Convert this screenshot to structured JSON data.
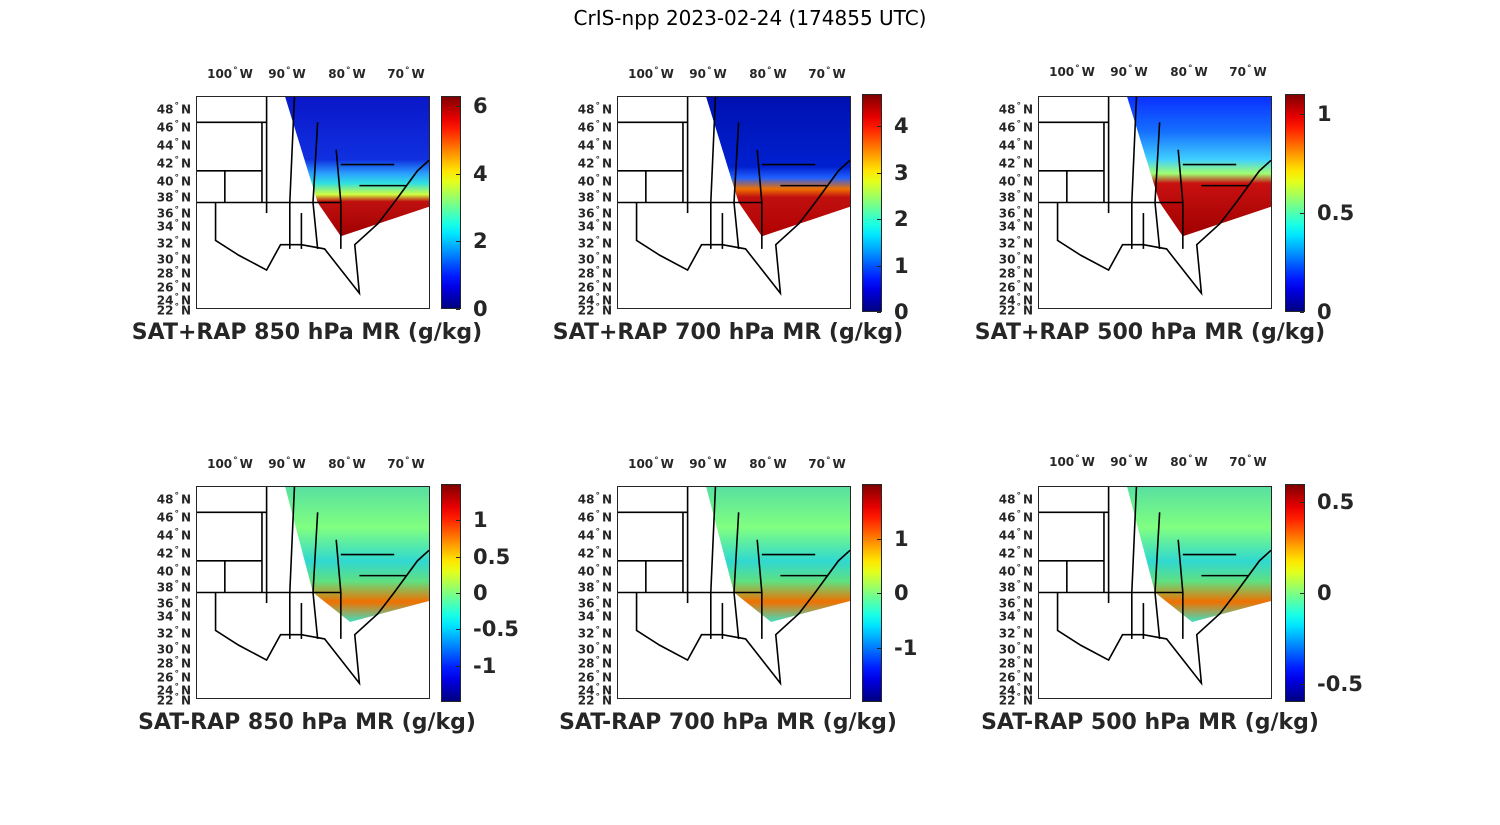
{
  "title": "CrIS-npp 2023-02-24 (174855 UTC)",
  "lon_ticks": [
    {
      "value": "100",
      "dir": "W"
    },
    {
      "value": "90",
      "dir": "W"
    },
    {
      "value": "80",
      "dir": "W"
    },
    {
      "value": "70",
      "dir": "W"
    }
  ],
  "lat_ticks": [
    {
      "value": "48",
      "dir": "N"
    },
    {
      "value": "46",
      "dir": "N"
    },
    {
      "value": "44",
      "dir": "N"
    },
    {
      "value": "42",
      "dir": "N"
    },
    {
      "value": "40",
      "dir": "N"
    },
    {
      "value": "38",
      "dir": "N"
    },
    {
      "value": "36",
      "dir": "N"
    },
    {
      "value": "34",
      "dir": "N"
    },
    {
      "value": "32",
      "dir": "N"
    },
    {
      "value": "30",
      "dir": "N"
    },
    {
      "value": "28",
      "dir": "N"
    },
    {
      "value": "26",
      "dir": "N"
    },
    {
      "value": "24",
      "dir": "N"
    },
    {
      "value": "22",
      "dir": "N"
    }
  ],
  "degree_symbol": "°",
  "colormap": "jet",
  "panels": [
    {
      "label": "SAT+RAP 850 hPa MR (g/kg)",
      "type": "total",
      "clim": [
        0,
        6.3
      ],
      "ticks": [
        "0",
        "2",
        "4",
        "6"
      ],
      "tick_values": [
        0,
        2,
        4,
        6
      ]
    },
    {
      "label": "SAT+RAP 700 hPa MR (g/kg)",
      "type": "total",
      "clim": [
        0,
        4.7
      ],
      "ticks": [
        "0",
        "1",
        "2",
        "3",
        "4"
      ],
      "tick_values": [
        0,
        1,
        2,
        3,
        4
      ]
    },
    {
      "label": "SAT+RAP 500 hPa MR (g/kg)",
      "type": "total",
      "clim": [
        0,
        1.1
      ],
      "ticks": [
        "0",
        "0.5",
        "1"
      ],
      "tick_values": [
        0,
        0.5,
        1
      ]
    },
    {
      "label": "SAT-RAP 850 hPa MR (g/kg)",
      "type": "diff",
      "clim": [
        -1.5,
        1.5
      ],
      "ticks": [
        "-1",
        "-0.5",
        "0",
        "0.5",
        "1"
      ],
      "tick_values": [
        -1,
        -0.5,
        0,
        0.5,
        1
      ]
    },
    {
      "label": "SAT-RAP 700 hPa MR (g/kg)",
      "type": "diff",
      "clim": [
        -2,
        2
      ],
      "ticks": [
        "-1",
        "0",
        "1"
      ],
      "tick_values": [
        -1,
        0,
        1
      ]
    },
    {
      "label": "SAT-RAP 500 hPa MR (g/kg)",
      "type": "diff",
      "clim": [
        -0.6,
        0.6
      ],
      "ticks": [
        "-0.5",
        "0",
        "0.5"
      ],
      "tick_values": [
        -0.5,
        0,
        0.5
      ]
    }
  ]
}
